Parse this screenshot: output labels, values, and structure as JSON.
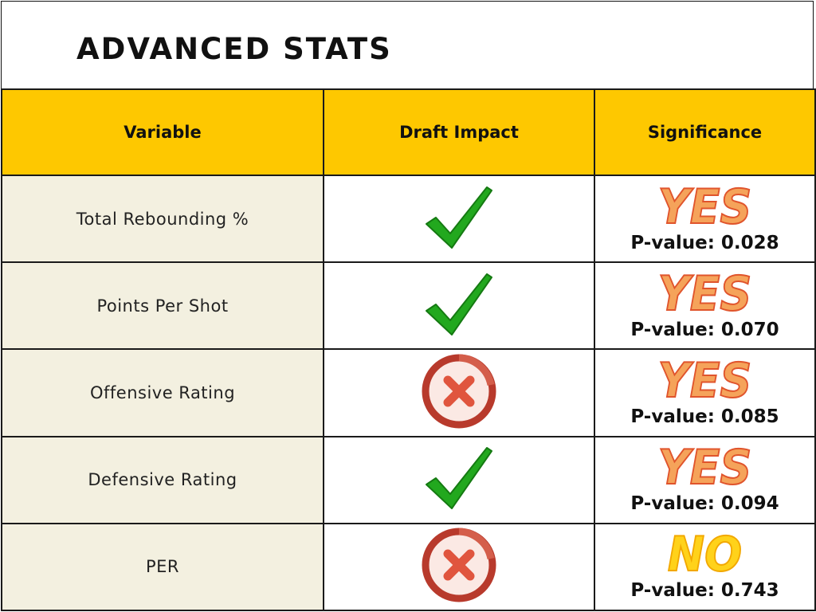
{
  "title": "ADVANCED STATS",
  "headers": {
    "variable": "Variable",
    "impact": "Draft Impact",
    "significance": "Significance"
  },
  "rows": [
    {
      "variable": "Total Rebounding %",
      "impact": "check-icon",
      "significance": "YES",
      "p_value": "P-value: 0.028"
    },
    {
      "variable": "Points Per Shot",
      "impact": "check-icon",
      "significance": "YES",
      "p_value": "P-value: 0.070"
    },
    {
      "variable": "Offensive Rating",
      "impact": "x-circle-icon",
      "significance": "YES",
      "p_value": "P-value: 0.085"
    },
    {
      "variable": "Defensive Rating",
      "impact": "check-icon",
      "significance": "YES",
      "p_value": "P-value: 0.094"
    },
    {
      "variable": "PER",
      "impact": "x-circle-icon",
      "significance": "NO",
      "p_value": "P-value: 0.743"
    }
  ],
  "colors": {
    "header_bg": "#fec800",
    "variable_bg": "#f3f0e0",
    "check_green": "#22a81e",
    "x_red": "#c0392b",
    "yes_orange": "#f5a35a",
    "no_yellow": "#ffd21a"
  }
}
